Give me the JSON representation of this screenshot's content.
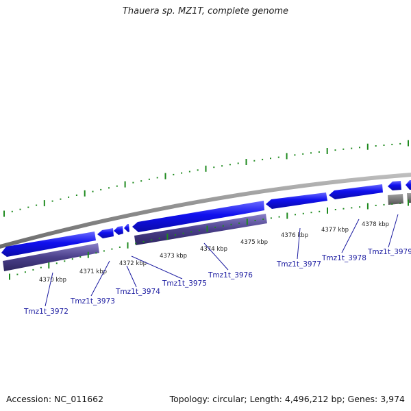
{
  "title": "Thauera sp. MZ1T, complete genome",
  "footer": {
    "accession": "Accession: NC_011662",
    "summary": "Topology: circular; Length: 4,496,212 bp; Genes: 3,974"
  },
  "colors": {
    "forward_gene": "#1010ee",
    "reverse_gene": "#4a3f8a",
    "grey_gene": "#6e6e6e",
    "backbone": "#8c8c8c",
    "ticks": "#1e8a1e",
    "labels": "#1a1aa0"
  },
  "kbp_markers": [
    {
      "label": "4370 kbp"
    },
    {
      "label": "4371 kbp"
    },
    {
      "label": "4372 kbp"
    },
    {
      "label": "4373 kbp"
    },
    {
      "label": "4374 kbp"
    },
    {
      "label": "4375 kbp"
    },
    {
      "label": "4376 kbp"
    },
    {
      "label": "4377 kbp"
    },
    {
      "label": "4378 kbp"
    }
  ],
  "gene_labels": [
    {
      "label": "Tmz1t_3972"
    },
    {
      "label": "Tmz1t_3973"
    },
    {
      "label": "Tmz1t_3974"
    },
    {
      "label": "Tmz1t_3975"
    },
    {
      "label": "Tmz1t_3976"
    },
    {
      "label": "Tmz1t_3977"
    },
    {
      "label": "Tmz1t_3978"
    },
    {
      "label": "Tmz1t_3979"
    }
  ]
}
